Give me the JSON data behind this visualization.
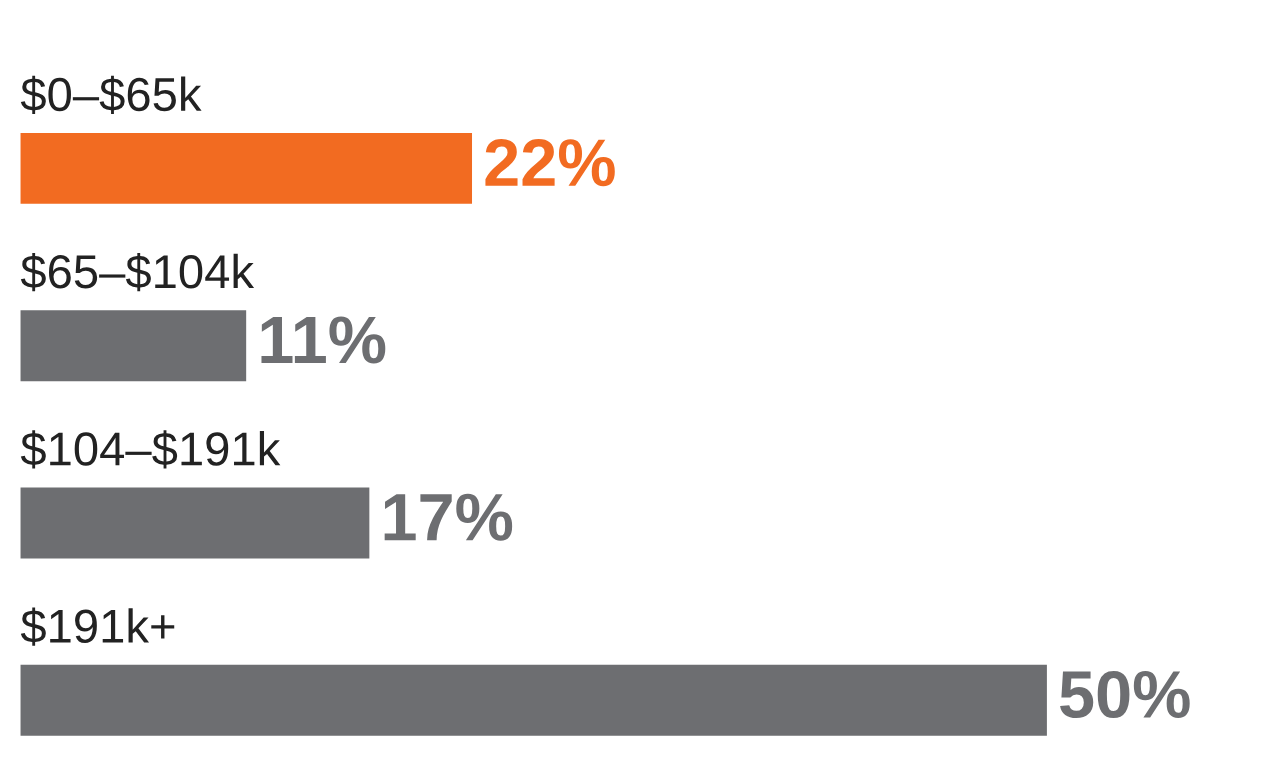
{
  "chart_data": {
    "type": "bar",
    "orientation": "horizontal",
    "categories": [
      "$0–$65k",
      "$65–$104k",
      "$104–$191k",
      "$191k+"
    ],
    "values": [
      22,
      11,
      17,
      50
    ],
    "colors": [
      "#f26b21",
      "#6d6e71",
      "#6d6e71",
      "#6d6e71"
    ],
    "value_labels": [
      "22%",
      "11%",
      "17%",
      "50%"
    ],
    "legend": false
  }
}
